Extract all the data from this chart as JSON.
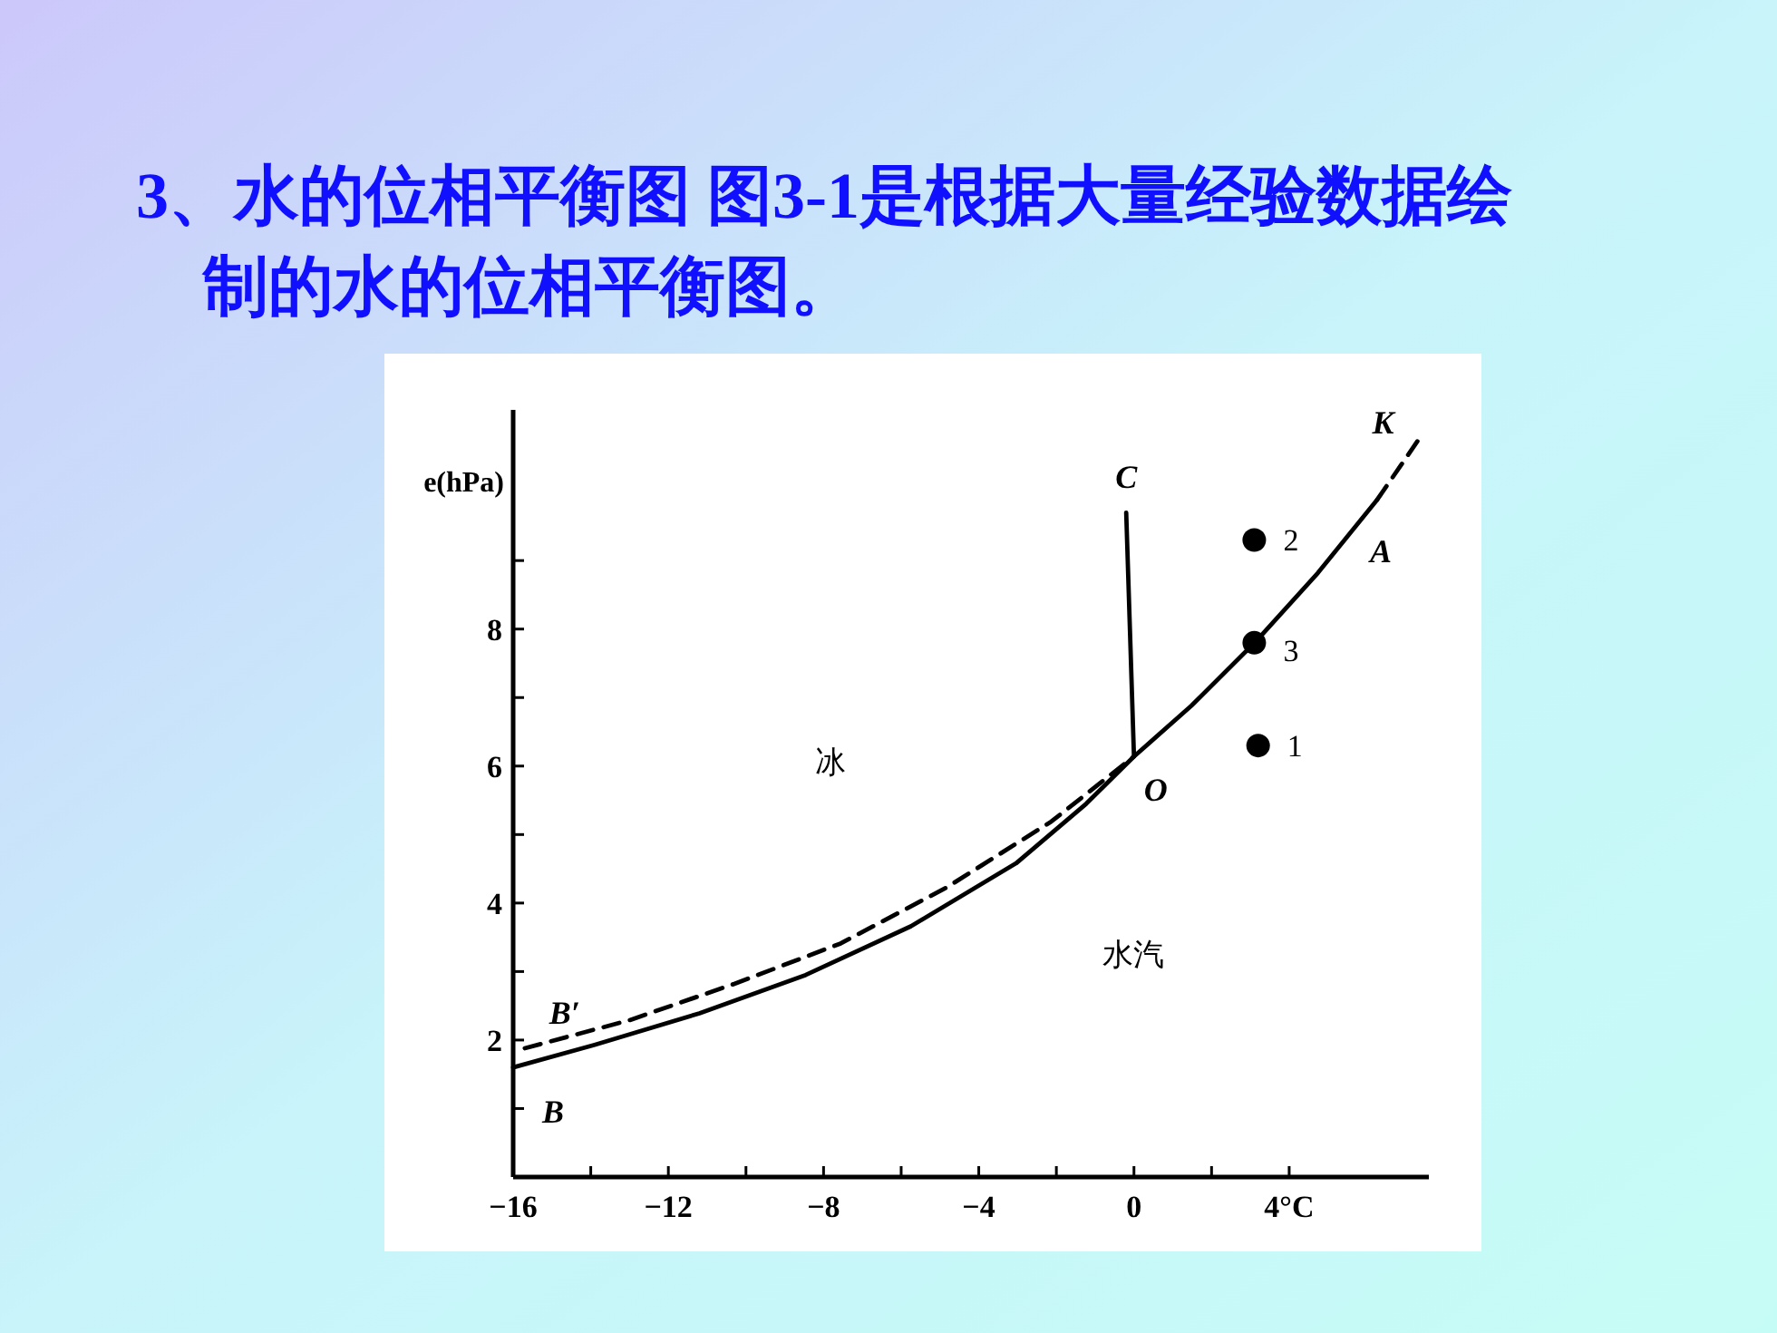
{
  "chart_data": {
    "type": "line",
    "title": "3、水的位相平衡图 图3-1是根据大量经验数据绘制的水的位相平衡图。",
    "ylabel": "e(hPa)",
    "xlim": [
      -16,
      7.6
    ],
    "ylim": [
      0,
      11.2
    ],
    "xticks": [
      {
        "value": -16,
        "label": "−16"
      },
      {
        "value": -14,
        "label": null
      },
      {
        "value": -12,
        "label": "−12"
      },
      {
        "value": -10,
        "label": null
      },
      {
        "value": -8,
        "label": "−8"
      },
      {
        "value": -6,
        "label": null
      },
      {
        "value": -4,
        "label": "−4"
      },
      {
        "value": -2,
        "label": null
      },
      {
        "value": 0,
        "label": "0"
      },
      {
        "value": 2,
        "label": null
      },
      {
        "value": 4,
        "label": "4°C"
      }
    ],
    "yticks": [
      {
        "value": 1,
        "label": null
      },
      2,
      {
        "value": 3,
        "label": null
      },
      4,
      {
        "value": 5,
        "label": null
      },
      6,
      {
        "value": 7,
        "label": null
      },
      8,
      {
        "value": 9,
        "label": null
      }
    ],
    "marker": "none",
    "series": [
      {
        "line_style": "solid",
        "color": "#000000",
        "x": [
          -16,
          -13.9,
          -11.2,
          -8.46,
          -5.75,
          -3.04,
          -1.23,
          0,
          1.48,
          3.11,
          4.74,
          6.27
        ],
        "values": [
          1.6,
          1.93,
          2.39,
          2.95,
          3.66,
          4.58,
          5.45,
          6.14,
          6.88,
          7.8,
          8.82,
          9.89
        ]
      },
      {
        "line_style": "dashed",
        "color": "#000000",
        "x": [
          -15.7,
          -13,
          -10.3,
          -7.56,
          -4.85,
          -2.13,
          0
        ],
        "values": [
          1.88,
          2.29,
          2.82,
          3.41,
          4.22,
          5.19,
          6.14
        ]
      },
      {
        "line_style": "dashed",
        "color": "#000000",
        "x": [
          6.27,
          7.45
        ],
        "values": [
          9.89,
          10.86
        ]
      },
      {
        "line_style": "solid",
        "color": "#000000",
        "x": [
          -0.2,
          0
        ],
        "values": [
          9.7,
          6.14
        ]
      },
      {
        "type": "scatter",
        "marker": "circle",
        "color": "#000000",
        "x": [
          3.1,
          3.1,
          3.2
        ],
        "values": [
          9.3,
          7.8,
          6.3
        ]
      }
    ],
    "annotations": [
      {
        "text": "K",
        "x": 7.45,
        "y": 10.86
      },
      {
        "text": "A",
        "x": 6.27,
        "y": 9.89
      },
      {
        "text": "C",
        "x": -0.2,
        "y": 9.7
      },
      {
        "text": "O",
        "x": 0,
        "y": 6.14
      },
      {
        "text": "B′",
        "x": -15.7,
        "y": 1.88
      },
      {
        "text": "B",
        "x": -16,
        "y": 1.6
      },
      {
        "text": "2",
        "x": 3.1,
        "y": 9.3
      },
      {
        "text": "3",
        "x": 3.1,
        "y": 7.8
      },
      {
        "text": "1",
        "x": 3.2,
        "y": 6.3
      },
      "冰",
      "水汽"
    ]
  }
}
